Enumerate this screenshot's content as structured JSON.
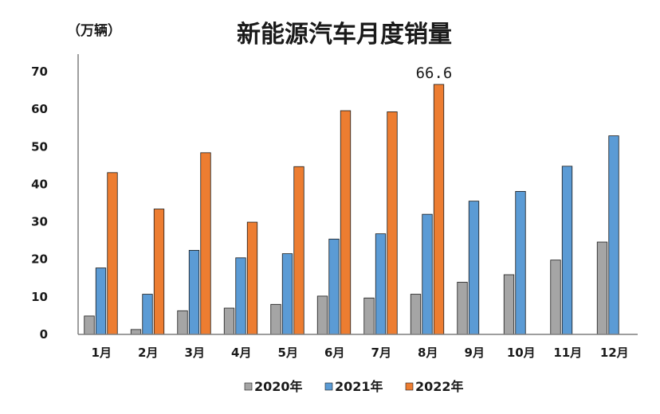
{
  "chart_data": {
    "type": "bar",
    "title": "新能源汽车月度销量",
    "ylabel": "（万辆）",
    "xlabel": "",
    "ylim": [
      0,
      70
    ],
    "yticks": [
      0,
      10,
      20,
      30,
      40,
      50,
      60,
      70
    ],
    "categories": [
      "1月",
      "2月",
      "3月",
      "4月",
      "5月",
      "6月",
      "7月",
      "8月",
      "9月",
      "10月",
      "11月",
      "12月"
    ],
    "series": [
      {
        "name": "2020年",
        "color": "#a5a5a5",
        "values": [
          4.9,
          1.3,
          6.3,
          7.0,
          8.0,
          10.2,
          9.7,
          10.7,
          13.9,
          15.9,
          19.8,
          24.6
        ]
      },
      {
        "name": "2021年",
        "color": "#5b9bd5",
        "values": [
          17.7,
          10.7,
          22.4,
          20.4,
          21.5,
          25.4,
          26.8,
          32.0,
          35.5,
          38.1,
          44.8,
          52.9
        ]
      },
      {
        "name": "2022年",
        "color": "#ed7d31",
        "values": [
          43.1,
          33.4,
          48.4,
          29.9,
          44.7,
          59.6,
          59.3,
          66.6,
          null,
          null,
          null,
          null
        ]
      }
    ],
    "annotations": [
      {
        "text": "66.6",
        "series": "2022年",
        "category": "8月"
      }
    ],
    "legend": "bottom-center",
    "grid": false
  }
}
